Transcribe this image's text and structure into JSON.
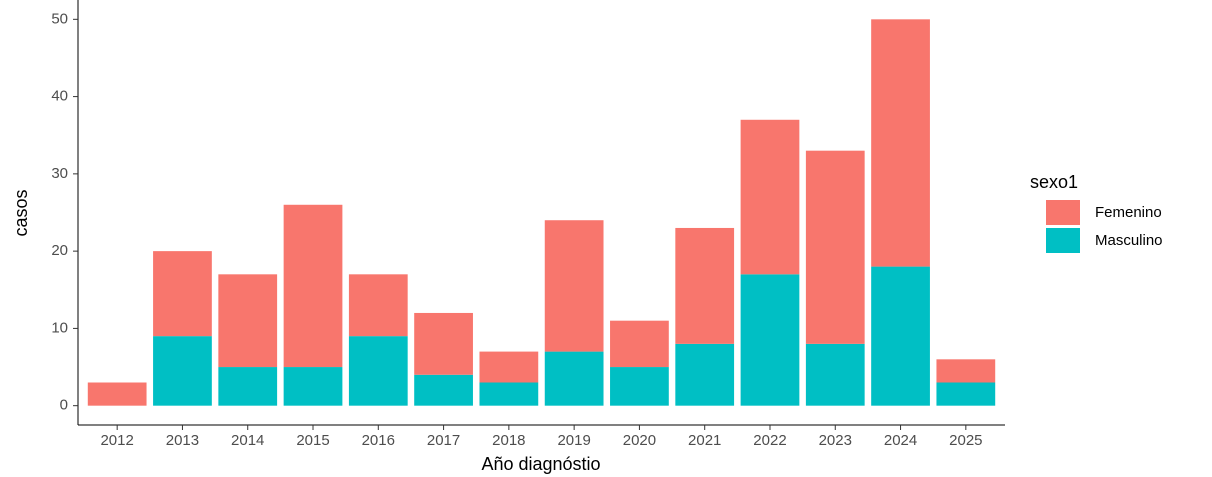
{
  "chart_data": {
    "type": "stacked_bar",
    "xlabel": "Año diagnóstio",
    "ylabel": "casos",
    "categories": [
      "2012",
      "2013",
      "2014",
      "2015",
      "2016",
      "2017",
      "2018",
      "2019",
      "2020",
      "2021",
      "2022",
      "2023",
      "2024",
      "2025"
    ],
    "legend_title": "sexo1",
    "series": [
      {
        "name": "Femenino",
        "color": "#F8766D",
        "values": [
          3,
          11,
          12,
          21,
          8,
          8,
          4,
          17,
          6,
          15,
          20,
          25,
          32,
          3
        ]
      },
      {
        "name": "Masculino",
        "color": "#00BFC4",
        "values": [
          0,
          9,
          5,
          5,
          9,
          4,
          3,
          7,
          5,
          8,
          17,
          8,
          18,
          3
        ]
      }
    ],
    "ylim": [
      -2.5,
      52.5
    ],
    "yticks": [
      0,
      10,
      20,
      30,
      40,
      50
    ],
    "grid": false,
    "legend": "right"
  }
}
